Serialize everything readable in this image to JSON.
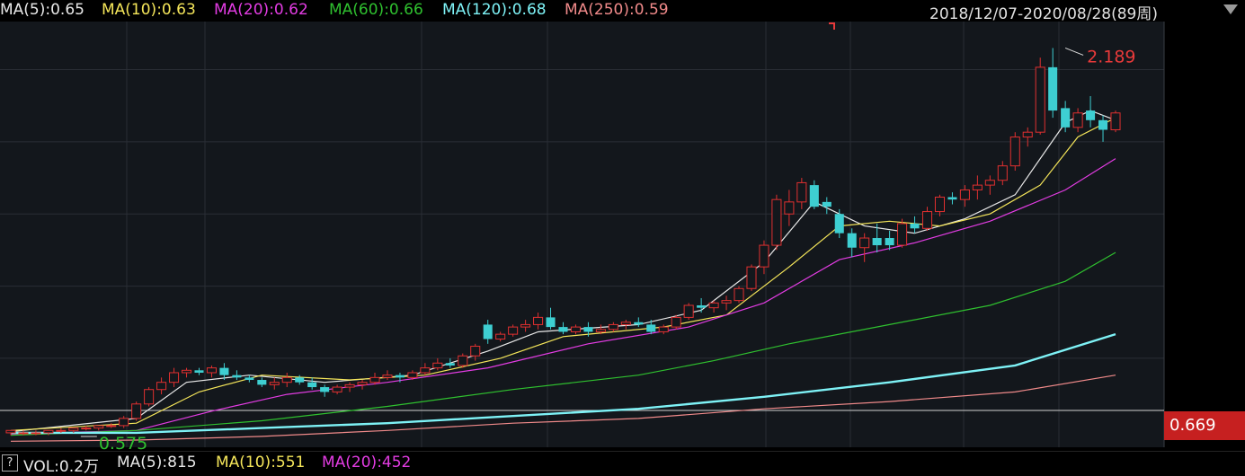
{
  "header": {
    "ma": [
      {
        "label": "MA(5):0.65",
        "color": "#e8e8e8"
      },
      {
        "label": "MA(10):0.63",
        "color": "#f5e65a"
      },
      {
        "label": "MA(20):0.62",
        "color": "#e33ce3"
      },
      {
        "label": "MA(60):0.66",
        "color": "#2fc02f"
      },
      {
        "label": "MA(120):0.68",
        "color": "#7ef2f6"
      },
      {
        "label": "MA(250):0.59",
        "color": "#f08a8a"
      }
    ],
    "range": "2018/12/07-2020/08/28(89周)"
  },
  "current_price": "0.669",
  "volume": {
    "help": "?",
    "items": [
      {
        "label": "VOL:0.2万",
        "color": "#e8e8e8"
      },
      {
        "label": "MA(5):815",
        "color": "#e8e8e8"
      },
      {
        "label": "MA(10):551",
        "color": "#f5e65a"
      },
      {
        "label": "MA(20):452",
        "color": "#e33ce3"
      }
    ]
  },
  "colors": {
    "up": "#e03030",
    "down": "#3ecfd2",
    "bg": "#13171c",
    "grid": "#2a2e35"
  },
  "chart_data": {
    "type": "candlestick",
    "period": "weekly",
    "y_ticks": [
      "2.100",
      "1.800",
      "1.500",
      "1.200",
      "0.900"
    ],
    "ylim": [
      0.53,
      2.3
    ],
    "annotations": {
      "max": "2.189",
      "min": "0.575"
    },
    "candles": [
      [
        0.59,
        0.6,
        0.58,
        0.6
      ],
      [
        0.59,
        0.6,
        0.58,
        0.59
      ],
      [
        0.59,
        0.6,
        0.58,
        0.59
      ],
      [
        0.59,
        0.6,
        0.58,
        0.6
      ],
      [
        0.6,
        0.61,
        0.59,
        0.6
      ],
      [
        0.6,
        0.61,
        0.59,
        0.61
      ],
      [
        0.61,
        0.62,
        0.6,
        0.61
      ],
      [
        0.61,
        0.62,
        0.6,
        0.62
      ],
      [
        0.62,
        0.63,
        0.61,
        0.62
      ],
      [
        0.62,
        0.66,
        0.61,
        0.65
      ],
      [
        0.65,
        0.72,
        0.64,
        0.71
      ],
      [
        0.71,
        0.78,
        0.7,
        0.77
      ],
      [
        0.77,
        0.82,
        0.75,
        0.8
      ],
      [
        0.8,
        0.86,
        0.78,
        0.84
      ],
      [
        0.84,
        0.86,
        0.82,
        0.85
      ],
      [
        0.85,
        0.86,
        0.83,
        0.84
      ],
      [
        0.84,
        0.87,
        0.82,
        0.86
      ],
      [
        0.86,
        0.88,
        0.81,
        0.83
      ],
      [
        0.83,
        0.85,
        0.81,
        0.82
      ],
      [
        0.82,
        0.83,
        0.8,
        0.81
      ],
      [
        0.81,
        0.82,
        0.78,
        0.79
      ],
      [
        0.79,
        0.82,
        0.77,
        0.8
      ],
      [
        0.8,
        0.84,
        0.78,
        0.82
      ],
      [
        0.82,
        0.83,
        0.79,
        0.8
      ],
      [
        0.8,
        0.82,
        0.77,
        0.78
      ],
      [
        0.78,
        0.79,
        0.74,
        0.76
      ],
      [
        0.76,
        0.79,
        0.75,
        0.78
      ],
      [
        0.78,
        0.8,
        0.76,
        0.79
      ],
      [
        0.79,
        0.81,
        0.77,
        0.8
      ],
      [
        0.8,
        0.84,
        0.79,
        0.82
      ],
      [
        0.82,
        0.85,
        0.81,
        0.83
      ],
      [
        0.83,
        0.84,
        0.8,
        0.82
      ],
      [
        0.82,
        0.85,
        0.81,
        0.84
      ],
      [
        0.84,
        0.88,
        0.83,
        0.86
      ],
      [
        0.86,
        0.9,
        0.85,
        0.88
      ],
      [
        0.88,
        0.9,
        0.86,
        0.87
      ],
      [
        0.87,
        0.92,
        0.86,
        0.91
      ],
      [
        0.91,
        0.96,
        0.89,
        0.95
      ],
      [
        1.04,
        1.06,
        0.96,
        0.98
      ],
      [
        0.98,
        1.01,
        0.97,
        1.0
      ],
      [
        1.0,
        1.04,
        0.99,
        1.03
      ],
      [
        1.03,
        1.06,
        1.01,
        1.04
      ],
      [
        1.04,
        1.09,
        1.02,
        1.07
      ],
      [
        1.07,
        1.11,
        1.02,
        1.03
      ],
      [
        1.03,
        1.05,
        1.0,
        1.01
      ],
      [
        1.01,
        1.04,
        1.0,
        1.03
      ],
      [
        1.03,
        1.05,
        0.99,
        1.01
      ],
      [
        1.01,
        1.04,
        1.0,
        1.02
      ],
      [
        1.02,
        1.05,
        1.01,
        1.04
      ],
      [
        1.04,
        1.06,
        1.02,
        1.05
      ],
      [
        1.05,
        1.07,
        1.03,
        1.04
      ],
      [
        1.04,
        1.06,
        1.0,
        1.01
      ],
      [
        1.01,
        1.04,
        1.0,
        1.03
      ],
      [
        1.03,
        1.08,
        1.02,
        1.07
      ],
      [
        1.07,
        1.13,
        1.06,
        1.12
      ],
      [
        1.12,
        1.15,
        1.09,
        1.11
      ],
      [
        1.11,
        1.14,
        1.09,
        1.13
      ],
      [
        1.13,
        1.16,
        1.1,
        1.14
      ],
      [
        1.14,
        1.2,
        1.13,
        1.19
      ],
      [
        1.19,
        1.29,
        1.18,
        1.28
      ],
      [
        1.28,
        1.39,
        1.25,
        1.37
      ],
      [
        1.37,
        1.58,
        1.35,
        1.56
      ],
      [
        1.5,
        1.6,
        1.45,
        1.55
      ],
      [
        1.55,
        1.65,
        1.52,
        1.63
      ],
      [
        1.62,
        1.64,
        1.52,
        1.53
      ],
      [
        1.55,
        1.57,
        1.5,
        1.53
      ],
      [
        1.5,
        1.52,
        1.4,
        1.42
      ],
      [
        1.42,
        1.44,
        1.32,
        1.36
      ],
      [
        1.36,
        1.42,
        1.3,
        1.4
      ],
      [
        1.4,
        1.46,
        1.34,
        1.37
      ],
      [
        1.4,
        1.43,
        1.35,
        1.37
      ],
      [
        1.37,
        1.48,
        1.36,
        1.46
      ],
      [
        1.46,
        1.49,
        1.42,
        1.44
      ],
      [
        1.44,
        1.53,
        1.43,
        1.51
      ],
      [
        1.51,
        1.58,
        1.49,
        1.57
      ],
      [
        1.57,
        1.59,
        1.54,
        1.56
      ],
      [
        1.56,
        1.62,
        1.53,
        1.6
      ],
      [
        1.6,
        1.66,
        1.56,
        1.62
      ],
      [
        1.62,
        1.66,
        1.58,
        1.64
      ],
      [
        1.64,
        1.72,
        1.62,
        1.7
      ],
      [
        1.7,
        1.84,
        1.68,
        1.82
      ],
      [
        1.82,
        1.86,
        1.78,
        1.84
      ],
      [
        1.84,
        2.15,
        1.83,
        2.11
      ],
      [
        2.11,
        2.19,
        1.9,
        1.93
      ],
      [
        1.94,
        1.97,
        1.84,
        1.86
      ],
      [
        1.86,
        1.94,
        1.84,
        1.92
      ],
      [
        1.93,
        1.99,
        1.86,
        1.89
      ],
      [
        1.89,
        1.91,
        1.8,
        1.85
      ],
      [
        1.85,
        1.93,
        1.84,
        1.92
      ]
    ],
    "ma_series": [
      {
        "name": "MA(5)",
        "color": "#e8e8e8",
        "values": [
          [
            0,
            0.595
          ],
          [
            10,
            0.65
          ],
          [
            14,
            0.8
          ],
          [
            19,
            0.83
          ],
          [
            25,
            0.8
          ],
          [
            32,
            0.83
          ],
          [
            38,
            0.93
          ],
          [
            42,
            1.01
          ],
          [
            50,
            1.04
          ],
          [
            55,
            1.1
          ],
          [
            60,
            1.3
          ],
          [
            64,
            1.55
          ],
          [
            68,
            1.45
          ],
          [
            72,
            1.42
          ],
          [
            76,
            1.48
          ],
          [
            80,
            1.58
          ],
          [
            84,
            1.88
          ],
          [
            86,
            1.93
          ],
          [
            88,
            1.89
          ]
        ]
      },
      {
        "name": "MA(10)",
        "color": "#f5e65a",
        "values": [
          [
            0,
            0.6
          ],
          [
            10,
            0.63
          ],
          [
            15,
            0.76
          ],
          [
            20,
            0.83
          ],
          [
            27,
            0.81
          ],
          [
            33,
            0.83
          ],
          [
            39,
            0.9
          ],
          [
            44,
            0.99
          ],
          [
            52,
            1.03
          ],
          [
            57,
            1.08
          ],
          [
            62,
            1.28
          ],
          [
            66,
            1.45
          ],
          [
            70,
            1.47
          ],
          [
            74,
            1.45
          ],
          [
            78,
            1.5
          ],
          [
            82,
            1.62
          ],
          [
            85,
            1.82
          ],
          [
            88,
            1.9
          ]
        ]
      },
      {
        "name": "MA(20)",
        "color": "#e33ce3",
        "values": [
          [
            0,
            0.585
          ],
          [
            10,
            0.6
          ],
          [
            16,
            0.68
          ],
          [
            22,
            0.75
          ],
          [
            30,
            0.8
          ],
          [
            38,
            0.86
          ],
          [
            46,
            0.96
          ],
          [
            54,
            1.03
          ],
          [
            60,
            1.13
          ],
          [
            66,
            1.31
          ],
          [
            72,
            1.38
          ],
          [
            78,
            1.47
          ],
          [
            84,
            1.6
          ],
          [
            88,
            1.73
          ]
        ]
      },
      {
        "name": "MA(60)",
        "color": "#2fc02f",
        "values": [
          [
            0,
            0.58
          ],
          [
            10,
            0.6
          ],
          [
            20,
            0.64
          ],
          [
            30,
            0.7
          ],
          [
            40,
            0.77
          ],
          [
            50,
            0.83
          ],
          [
            56,
            0.89
          ],
          [
            62,
            0.96
          ],
          [
            70,
            1.04
          ],
          [
            78,
            1.12
          ],
          [
            84,
            1.22
          ],
          [
            88,
            1.34
          ]
        ]
      },
      {
        "name": "MA(120)",
        "color": "#7ef2f6",
        "values": [
          [
            0,
            0.59
          ],
          [
            10,
            0.59
          ],
          [
            20,
            0.61
          ],
          [
            30,
            0.63
          ],
          [
            40,
            0.66
          ],
          [
            50,
            0.69
          ],
          [
            60,
            0.74
          ],
          [
            70,
            0.8
          ],
          [
            80,
            0.87
          ],
          [
            88,
            1.0
          ]
        ]
      },
      {
        "name": "MA(250)",
        "color": "#f08a8a",
        "values": [
          [
            0,
            0.555
          ],
          [
            10,
            0.56
          ],
          [
            20,
            0.575
          ],
          [
            30,
            0.6
          ],
          [
            40,
            0.63
          ],
          [
            50,
            0.65
          ],
          [
            60,
            0.69
          ],
          [
            70,
            0.72
          ],
          [
            80,
            0.76
          ],
          [
            88,
            0.83
          ]
        ]
      }
    ]
  }
}
